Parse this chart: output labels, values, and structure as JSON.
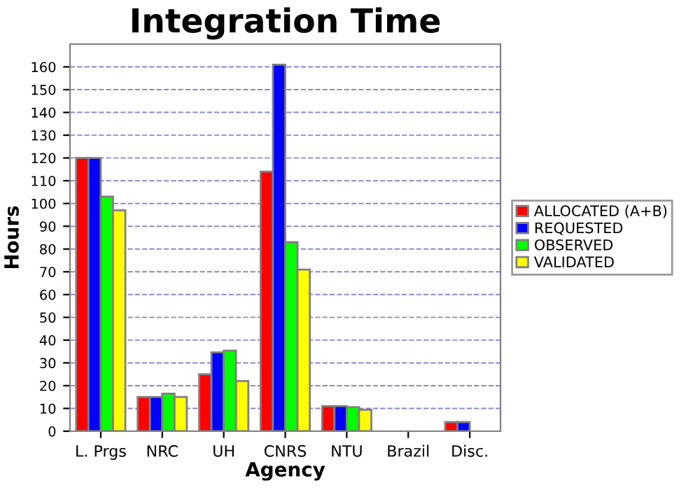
{
  "chart_data": {
    "type": "bar",
    "title": "Integration Time",
    "xlabel": "Agency",
    "ylabel": "Hours",
    "categories": [
      "L. Prgs",
      "NRC",
      "UH",
      "CNRS",
      "NTU",
      "Brazil",
      "Disc."
    ],
    "series": [
      {
        "name": "ALLOCATED (A+B)",
        "color": "#ff0000",
        "values": [
          120,
          15,
          25,
          114,
          11,
          null,
          4
        ]
      },
      {
        "name": "REQUESTED",
        "color": "#0000ff",
        "values": [
          120,
          15,
          34.6,
          161,
          11,
          null,
          4
        ]
      },
      {
        "name": "OBSERVED",
        "color": "#00ff00",
        "values": [
          103,
          16.5,
          35.4,
          83,
          10.6,
          null,
          null
        ]
      },
      {
        "name": "VALIDATED",
        "color": "#ffff00",
        "values": [
          97,
          15,
          22,
          71,
          9.4,
          null,
          null
        ]
      }
    ],
    "ylim": [
      0,
      170
    ],
    "yticks": [
      0,
      10,
      20,
      30,
      40,
      50,
      60,
      70,
      80,
      90,
      100,
      110,
      120,
      130,
      140,
      150,
      160
    ],
    "grid": "y",
    "legend": "right"
  }
}
